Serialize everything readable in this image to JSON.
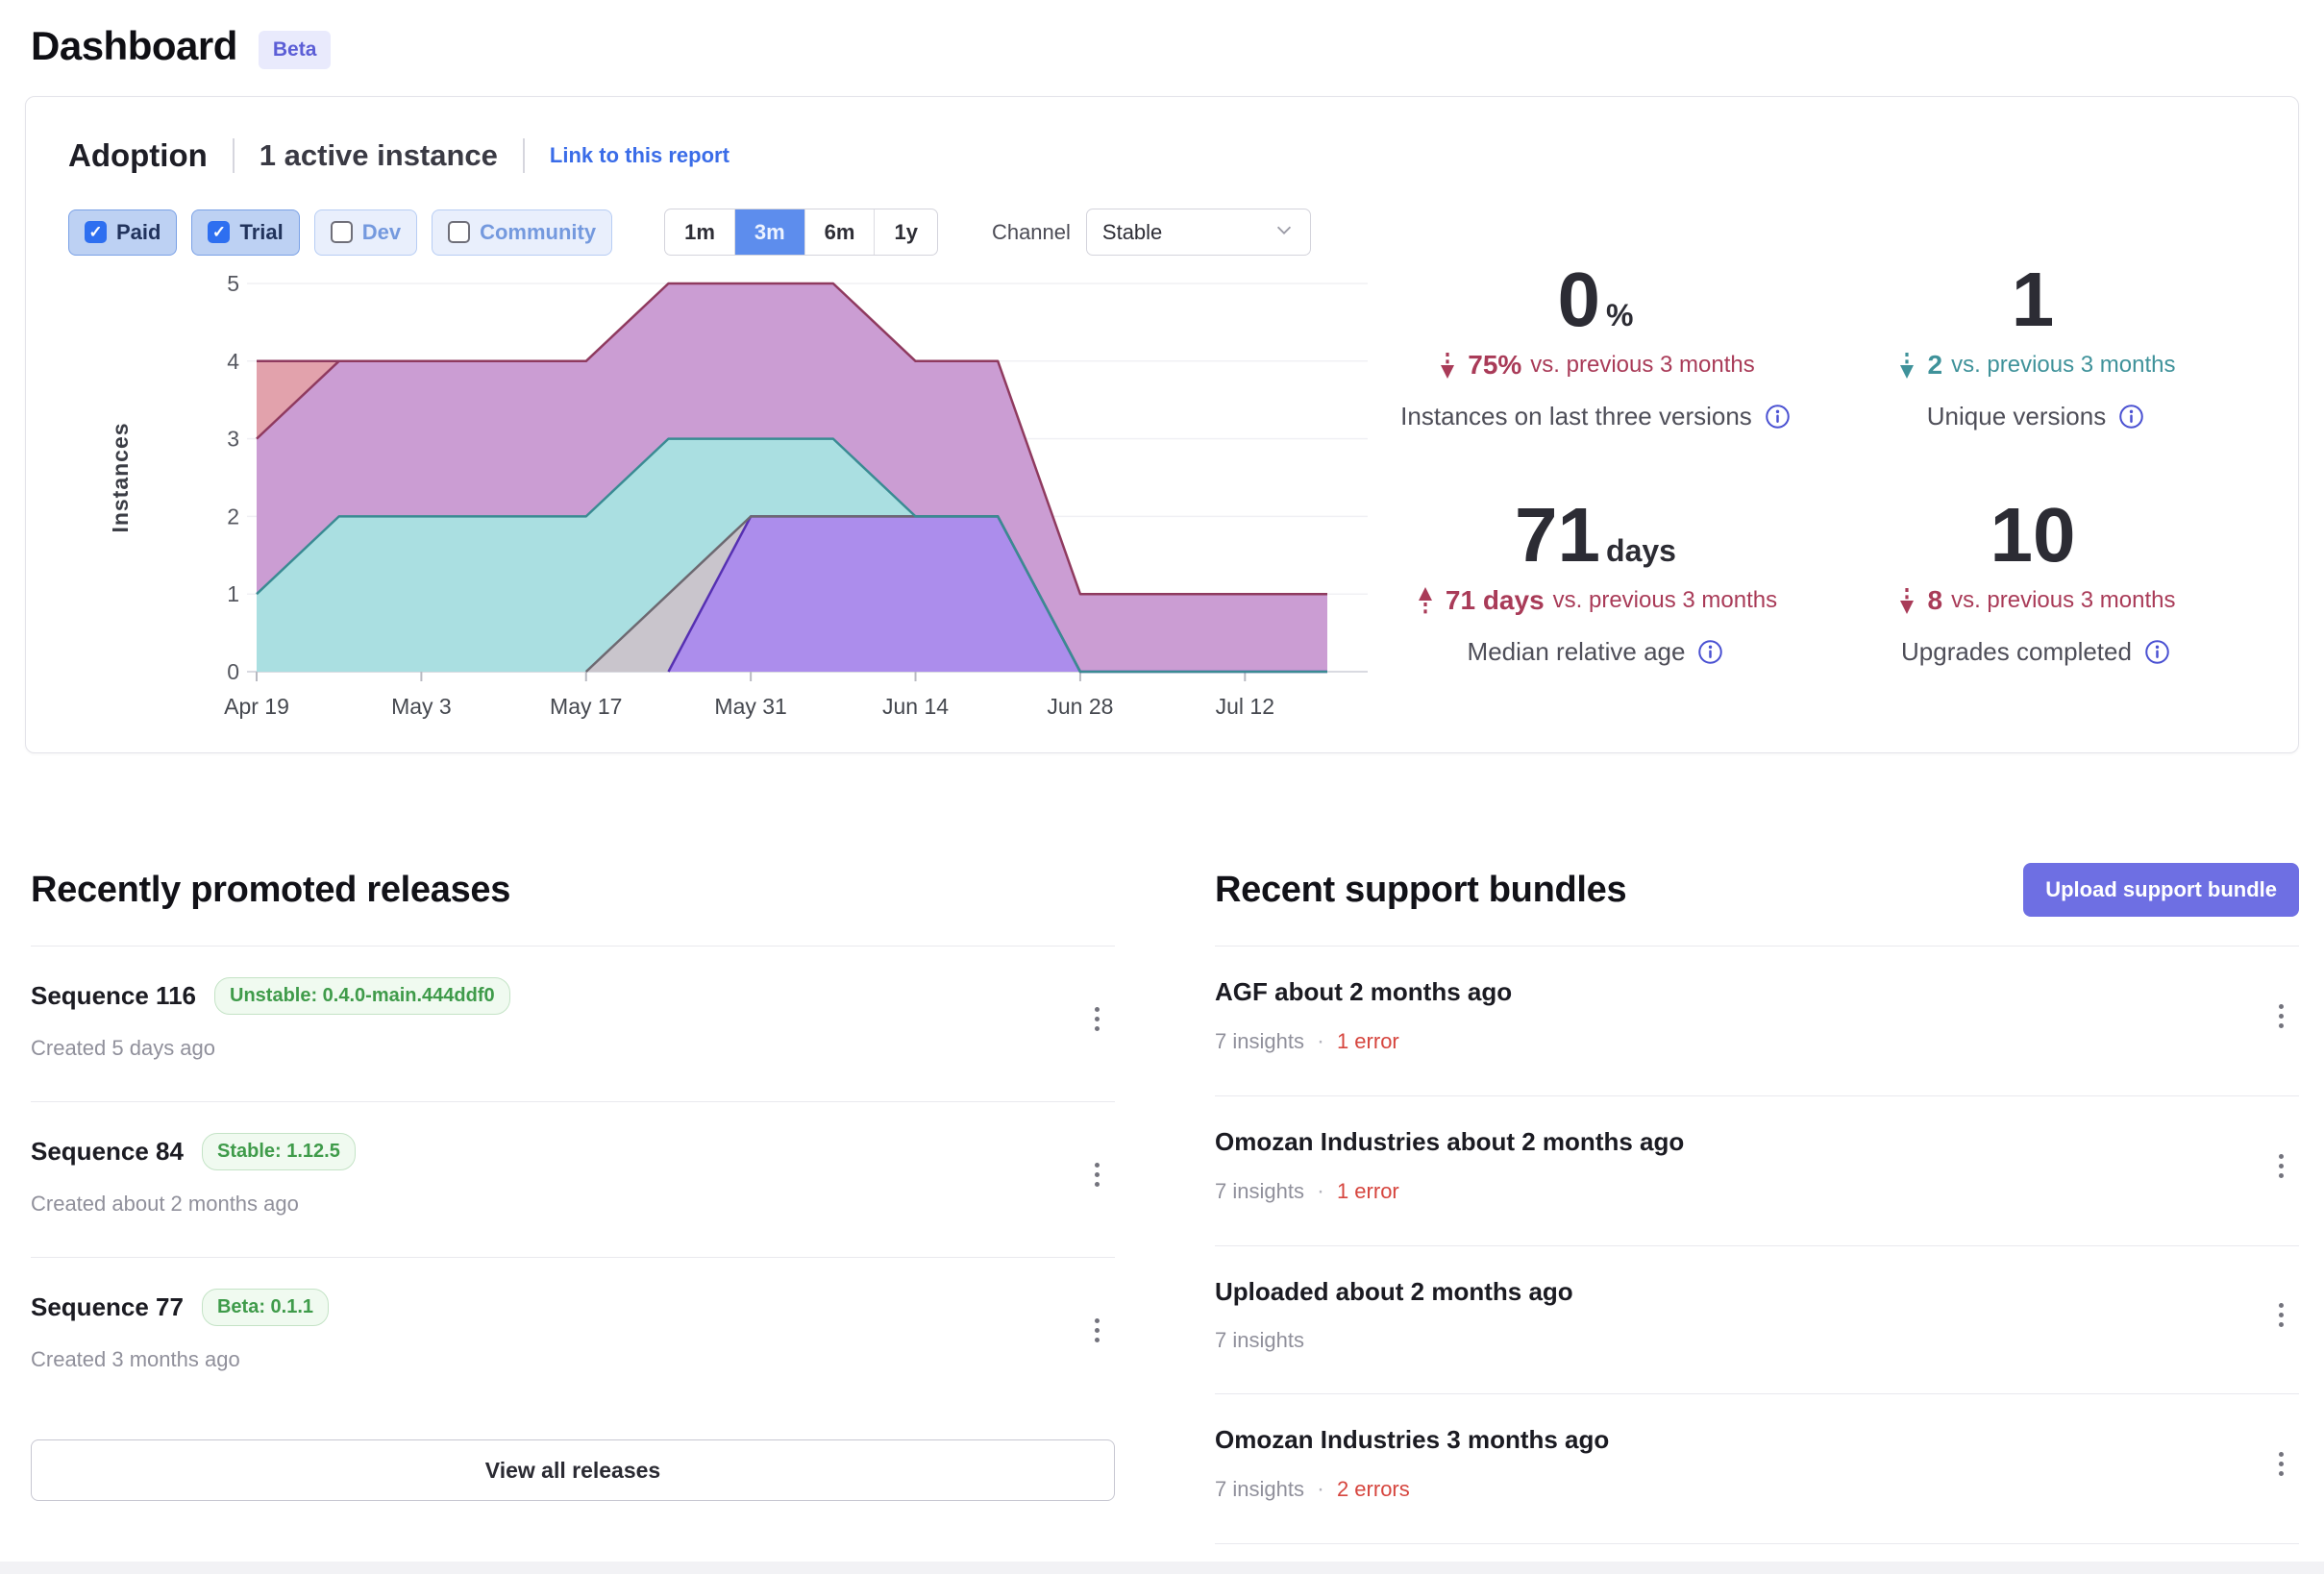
{
  "page": {
    "title": "Dashboard",
    "badge": "Beta"
  },
  "colors": {
    "link": "#3a6ce8",
    "accent_blue": "#5d8ded",
    "chip_checked_bg": "#bdd1f3",
    "chip_checked_border": "#7aa1e6",
    "chip_unchecked_bg": "#e9effc",
    "chip_unchecked_border": "#b7cdf4",
    "chip_unchecked_text": "#7499de",
    "checkbox_blue": "#2e6ff0",
    "trend_red": "#a93b58",
    "trend_teal": "#3f929a",
    "error_red": "#d6453e",
    "badge_green_text": "#3f9b4a",
    "badge_green_bg": "#f0faf0",
    "badge_green_border": "#c4e3c6",
    "beta_text": "#5c5ed6",
    "beta_bg": "#e9eafc",
    "upload_button": "#6e6fe3",
    "info_icon": "#4a51d2"
  },
  "adoption": {
    "title": "Adoption",
    "subtitle": "1 active instance",
    "link": "Link to this report",
    "filters": [
      {
        "label": "Paid",
        "checked": true
      },
      {
        "label": "Trial",
        "checked": true
      },
      {
        "label": "Dev",
        "checked": false
      },
      {
        "label": "Community",
        "checked": false
      }
    ],
    "ranges": [
      {
        "label": "1m",
        "active": false
      },
      {
        "label": "3m",
        "active": true
      },
      {
        "label": "6m",
        "active": false
      },
      {
        "label": "1y",
        "active": false
      }
    ],
    "channel_label": "Channel",
    "channel_value": "Stable",
    "stats": [
      {
        "value": "0",
        "unit": "%",
        "trend": "down",
        "trend_color": "red",
        "delta": "75%",
        "suffix": "vs. previous 3 months",
        "label": "Instances on last three versions"
      },
      {
        "value": "1",
        "unit": "",
        "trend": "down",
        "trend_color": "teal",
        "delta": "2",
        "suffix": "vs. previous 3 months",
        "label": "Unique versions"
      },
      {
        "value": "71",
        "unit": "days",
        "trend": "up",
        "trend_color": "red",
        "delta": "71 days",
        "suffix": "vs. previous 3 months",
        "label": "Median relative age"
      },
      {
        "value": "10",
        "unit": "",
        "trend": "down",
        "trend_color": "red",
        "delta": "8",
        "suffix": "vs. previous 3 months",
        "label": "Upgrades completed"
      }
    ]
  },
  "chart_data": {
    "type": "area",
    "title": "Adoption instances by version over time",
    "xlabel": "",
    "ylabel": "Instances",
    "ylim": [
      0,
      5
    ],
    "grid": true,
    "legend": false,
    "x_unit": "days offset from Apr 19",
    "data_end_day": 91,
    "ticks": [
      {
        "day": 0,
        "label": "Apr 19"
      },
      {
        "day": 14,
        "label": "May 3"
      },
      {
        "day": 28,
        "label": "May 17"
      },
      {
        "day": 42,
        "label": "May 31"
      },
      {
        "day": 56,
        "label": "Jun 14"
      },
      {
        "day": 70,
        "label": "Jun 28"
      },
      {
        "day": 84,
        "label": "Jul 12"
      }
    ],
    "series": [
      {
        "name": "version-area-salmon",
        "fill": "#e2a2ac",
        "stroke": "#8f3a5f",
        "stroke_pass": 1,
        "points": [
          [
            0,
            4
          ],
          [
            7,
            4
          ]
        ]
      },
      {
        "name": "version-area-magenta",
        "fill": "#cb9dd3",
        "stroke": "#8f3a5f",
        "stroke_pass": 1,
        "points": [
          [
            0,
            3
          ],
          [
            7,
            4
          ],
          [
            28,
            4
          ],
          [
            35,
            5
          ],
          [
            49,
            5
          ],
          [
            56,
            4
          ],
          [
            63,
            4
          ],
          [
            70,
            1
          ],
          [
            91,
            1
          ]
        ]
      },
      {
        "name": "version-area-teal",
        "fill": "#aadfe1",
        "stroke": "#3a8b93",
        "stroke_pass": 3,
        "points": [
          [
            0,
            1
          ],
          [
            7,
            2
          ],
          [
            28,
            2
          ],
          [
            35,
            3
          ],
          [
            49,
            3
          ],
          [
            56,
            2
          ],
          [
            63,
            2
          ],
          [
            70,
            0
          ],
          [
            91,
            0
          ]
        ]
      },
      {
        "name": "version-area-gray",
        "fill": "#c9c5cc",
        "stroke": "#6d6971",
        "stroke_pass": 2,
        "points": [
          [
            28,
            0
          ],
          [
            42,
            2
          ],
          [
            63,
            2
          ],
          [
            70,
            0
          ]
        ]
      },
      {
        "name": "version-area-purple",
        "fill": "#ac8dec",
        "stroke": "#5630b2",
        "stroke_pass": 1,
        "points": [
          [
            35,
            0
          ],
          [
            42,
            2
          ],
          [
            63,
            2
          ],
          [
            70,
            0
          ],
          [
            91,
            0
          ]
        ]
      }
    ]
  },
  "releases": {
    "heading": "Recently promoted releases",
    "view_all": "View all releases",
    "items": [
      {
        "title": "Sequence 116",
        "badge": "Unstable: 0.4.0-main.444ddf0",
        "created": "Created 5 days ago"
      },
      {
        "title": "Sequence 84",
        "badge": "Stable: 1.12.5",
        "created": "Created about 2 months ago"
      },
      {
        "title": "Sequence 77",
        "badge": "Beta: 0.1.1",
        "created": "Created 3 months ago"
      }
    ]
  },
  "bundles": {
    "heading": "Recent support bundles",
    "button": "Upload support bundle",
    "separator": "·",
    "items": [
      {
        "title": "AGF about 2 months ago",
        "insights": "7 insights",
        "errors": "1 error"
      },
      {
        "title": "Omozan Industries about 2 months ago",
        "insights": "7 insights",
        "errors": "1 error"
      },
      {
        "title": "Uploaded about 2 months ago",
        "insights": "7 insights",
        "errors": null
      },
      {
        "title": "Omozan Industries 3 months ago",
        "insights": "7 insights",
        "errors": "2 errors"
      }
    ]
  }
}
